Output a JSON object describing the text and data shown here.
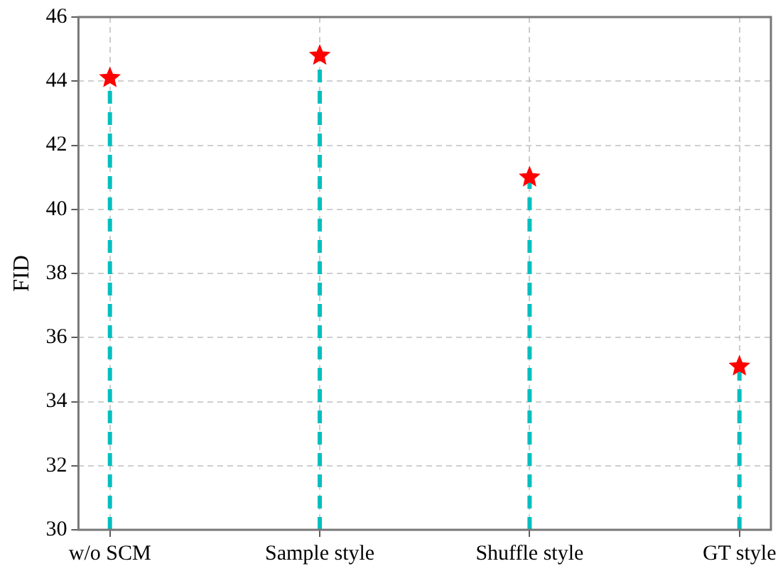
{
  "chart_data": {
    "type": "lollipop",
    "ylabel": "FID",
    "categories": [
      "w/o SCM",
      "Sample style",
      "Shuffle style",
      "GT style"
    ],
    "series": [
      {
        "color": "#ff0000",
        "values": [
          44.1,
          44.8,
          41.0,
          35.1
        ]
      }
    ],
    "ylim": [
      30,
      46
    ],
    "yticks": [
      30,
      32,
      34,
      36,
      38,
      40,
      42,
      44,
      46
    ],
    "grid": true,
    "marker": "star",
    "line_style": "dashed",
    "legend": false
  }
}
